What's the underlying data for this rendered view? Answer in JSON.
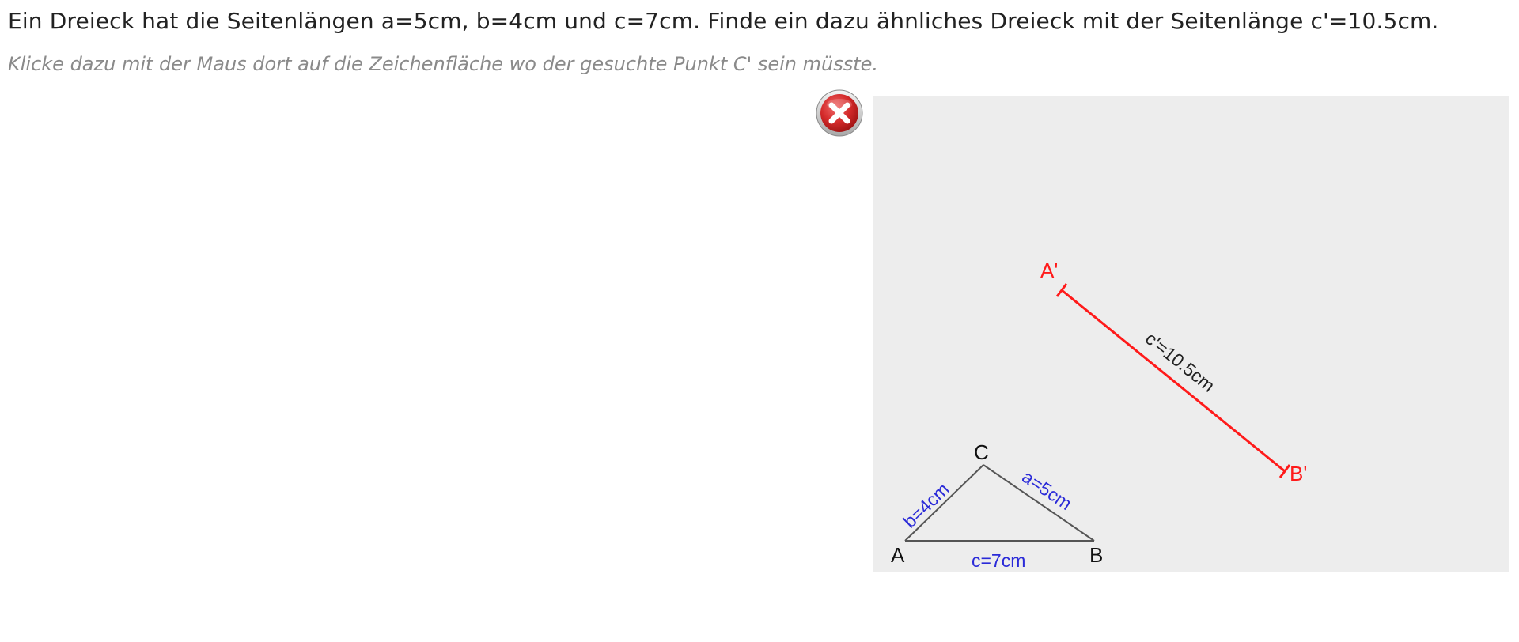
{
  "task": {
    "question": "Ein Dreieck hat die Seitenlängen a=5cm, b=4cm und c=7cm. Finde ein dazu ähnliches Dreieck mit der Seitenlänge c'=10.5cm.",
    "instruction": "Klicke dazu mit der Maus dort auf die Zeichenfläche wo der gesuchte Punkt C' sein müsste."
  },
  "close_button": {
    "icon": "close-icon",
    "color": "#d42a2a"
  },
  "canvas": {
    "background": "#ededed",
    "triangle": {
      "points": {
        "A": "A",
        "B": "B",
        "C": "C"
      },
      "sides": {
        "a": "a=5cm",
        "b": "b=4cm",
        "c": "c=7cm"
      },
      "line_color": "#555555",
      "label_color": "#2a2ad8"
    },
    "segment": {
      "start": "A'",
      "end": "B'",
      "label": "c'=10.5cm",
      "color": "#ff1a1a"
    }
  }
}
